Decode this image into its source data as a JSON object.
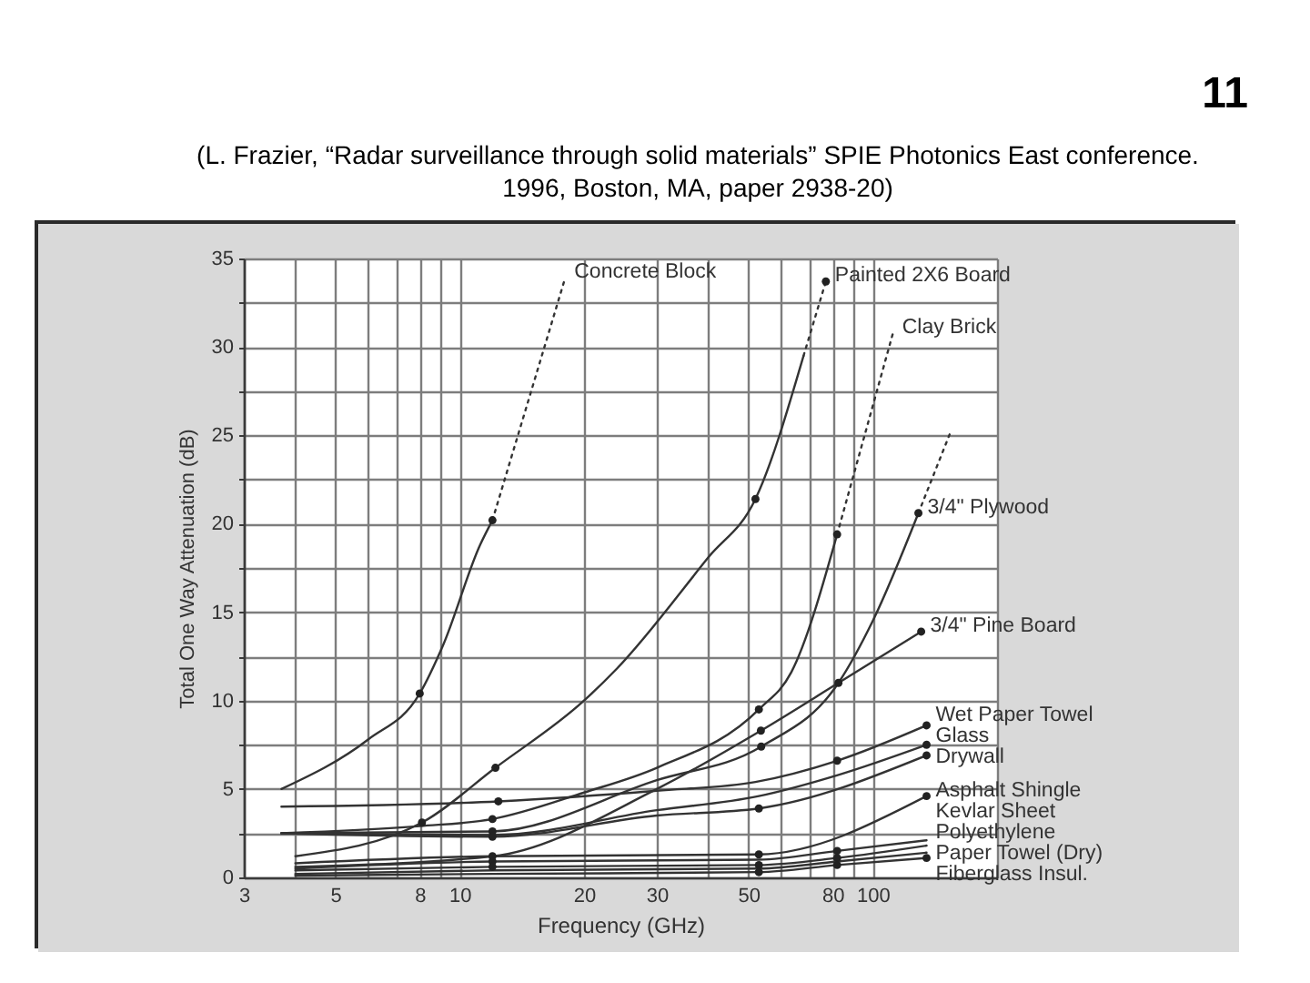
{
  "chart_data": {
    "type": "line",
    "annotations": [
      "11",
      "(L. Frazier, “Radar surveillance through solid materials” SPIE Photonics East conference. 1996, Boston, MA, paper 2938-20)"
    ],
    "xlabel": "Frequency (GHz)",
    "ylabel": "Total One Way Attenuation (dB)",
    "log": "x",
    "xlim": [
      3,
      200
    ],
    "ylim": [
      0,
      35
    ],
    "xticks": [
      3,
      {
        "value": 4,
        "label": null
      },
      5,
      {
        "value": 6,
        "label": null
      },
      {
        "value": 7,
        "label": null
      },
      8,
      {
        "value": 9,
        "label": null
      },
      10,
      20,
      30,
      {
        "value": 40,
        "label": null
      },
      50,
      {
        "value": 60,
        "label": null
      },
      {
        "value": 70,
        "label": null
      },
      80,
      {
        "value": 90,
        "label": null
      },
      100,
      {
        "value": 200,
        "label": null
      }
    ],
    "yticks": [
      0,
      {
        "value": 2.5,
        "label": null
      },
      5,
      {
        "value": 7.5,
        "label": null
      },
      10,
      {
        "value": 12.5,
        "label": null
      },
      15,
      {
        "value": 17.5,
        "label": null
      },
      20,
      {
        "value": 22.5,
        "label": null
      },
      25,
      {
        "value": 27.5,
        "label": null
      },
      30,
      {
        "value": 32.5,
        "label": null
      },
      35
    ],
    "grid": true,
    "line_style": "solid",
    "series": [
      {
        "color": "#333333",
        "x": [
          3.7,
          6,
          8,
          9.1,
          11.2,
          12
        ],
        "values": [
          5.0,
          7.8,
          10.4,
          13.1,
          18.8,
          20.2
        ]
      },
      {
        "name": "Concrete Block",
        "color": "#333333",
        "line_style": "dotted",
        "x": [
          12,
          18
        ],
        "values": [
          20.2,
          33.9
        ]
      },
      {
        "color": "#333333",
        "x": [
          4,
          8.1,
          12.2,
          20,
          24,
          40,
          52,
          68
        ],
        "values": [
          1.2,
          3.1,
          6.2,
          10.0,
          11.8,
          18.1,
          21.4,
          29.5
        ]
      },
      {
        "name": "Painted 2X6 Board",
        "color": "#333333",
        "line_style": "dotted",
        "x": [
          68,
          77
        ],
        "values": [
          29.5,
          33.7
        ]
      },
      {
        "color": "#333333",
        "x": [
          3.7,
          8,
          12,
          20,
          30,
          53,
          63.5,
          82
        ],
        "values": [
          2.5,
          2.9,
          3.3,
          4.8,
          6.2,
          9.5,
          11.6,
          19.4
        ]
      },
      {
        "name": "Clay Brick",
        "color": "#333333",
        "line_style": "dotted",
        "x": [
          82,
          112
        ],
        "values": [
          19.4,
          30.8
        ]
      },
      {
        "name": "3/4\" Plywood",
        "color": "#333333",
        "x": [
          3.7,
          12,
          30,
          53.7,
          82.6,
          100,
          129
        ],
        "values": [
          2.5,
          2.6,
          5.5,
          7.4,
          11.0,
          14.5,
          20.6
        ]
      },
      {
        "color": "#333333",
        "line_style": "dotted",
        "x": [
          129,
          155
        ],
        "values": [
          20.6,
          25.3
        ]
      },
      {
        "name": "3/4\" Pine Board",
        "color": "#333333",
        "x": [
          4,
          12,
          30,
          53.6,
          82.6,
          131
        ],
        "values": [
          0.6,
          1.2,
          5.0,
          8.3,
          11.0,
          13.9
        ]
      },
      {
        "name": "Wet Paper Towel",
        "color": "#333333",
        "x": [
          3.7,
          12.4,
          30,
          52,
          82,
          135
        ],
        "values": [
          4.0,
          4.3,
          4.9,
          5.4,
          6.6,
          8.6
        ]
      },
      {
        "name": "Glass",
        "color": "#333333",
        "x": [
          3.7,
          12,
          30,
          53,
          82.6,
          135
        ],
        "values": [
          2.5,
          2.4,
          3.8,
          4.6,
          5.8,
          7.5
        ]
      },
      {
        "name": "Drywall",
        "color": "#333333",
        "x": [
          3.7,
          12,
          30,
          53,
          135
        ],
        "values": [
          2.5,
          2.3,
          3.5,
          3.9,
          6.9
        ]
      },
      {
        "name": "Asphalt Shingle",
        "color": "#333333",
        "x": [
          4,
          12,
          53,
          135
        ],
        "values": [
          0.8,
          1.2,
          1.3,
          4.6
        ]
      },
      {
        "name": "Kevlar Sheet",
        "color": "#333333",
        "x": [
          4,
          12,
          53,
          82,
          135
        ],
        "values": [
          0.5,
          0.9,
          1.0,
          1.5,
          2.1
        ]
      },
      {
        "name": "Polyethylene",
        "color": "#333333",
        "x": [
          4,
          12,
          53,
          82,
          135
        ],
        "values": [
          0.4,
          0.6,
          0.7,
          1.1,
          1.8
        ]
      },
      {
        "name": "Paper Towel (Dry)",
        "color": "#333333",
        "x": [
          4,
          12,
          53,
          82,
          135
        ],
        "values": [
          0.2,
          0.4,
          0.5,
          0.9,
          1.4
        ]
      },
      {
        "name": "Fiberglass Insul.",
        "color": "#333333",
        "x": [
          4,
          12,
          53,
          82,
          135
        ],
        "values": [
          0.1,
          0.2,
          0.3,
          0.7,
          1.1
        ]
      },
      {
        "type": "scatter",
        "marker": "circle",
        "color": "#222222",
        "x": [
          8,
          12,
          8.1,
          12.2,
          52,
          77,
          12,
          53,
          82,
          12,
          53.7,
          82.6,
          129,
          53.6,
          131,
          12.4,
          82,
          135,
          135,
          12,
          53,
          135,
          12,
          53,
          135,
          12,
          12,
          53,
          53,
          82,
          82,
          82,
          135
        ],
        "values": [
          10.4,
          20.2,
          3.1,
          6.2,
          21.4,
          33.7,
          3.3,
          9.5,
          19.4,
          2.6,
          7.4,
          11.0,
          20.6,
          8.3,
          13.9,
          4.3,
          6.6,
          8.6,
          7.5,
          2.3,
          3.9,
          6.9,
          1.2,
          1.3,
          4.6,
          0.9,
          0.6,
          0.7,
          0.3,
          1.5,
          1.1,
          0.7,
          1.1
        ]
      }
    ]
  }
}
